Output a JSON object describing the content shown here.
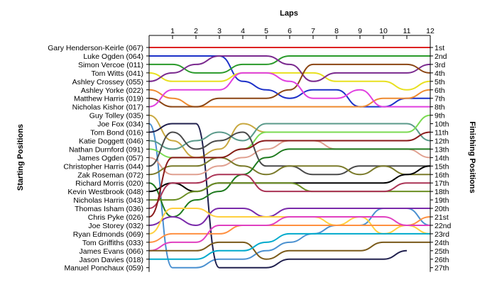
{
  "chart_data": {
    "type": "line",
    "title": "Laps",
    "ylabel_left": "Starting Positions",
    "ylabel_right": "Finishing Positions",
    "laps": [
      0,
      1,
      2,
      3,
      4,
      5,
      6,
      7,
      8,
      9,
      10,
      11,
      12
    ],
    "lap_labels": [
      "1",
      "2",
      "3",
      "4",
      "5",
      "6",
      "7",
      "8",
      "9",
      "10",
      "11",
      "12"
    ],
    "starting_labels": [
      "Gary Henderson-Keirle (067)",
      "Luke Ogden (064)",
      "Simon Vercoe (011)",
      "Tom Witts (041)",
      "Ashley Crossey (055)",
      "Ashley Yorke (022)",
      "Matthew Harris (019)",
      "Nicholas Kishor (017)",
      "Guy Tolley (035)",
      "Joe Fox (034)",
      "Tom Bond (016)",
      "Katie Doggett (046)",
      "Nathan Durnford (091)",
      "James Ogden (057)",
      "Christopher Harris (044)",
      "Zak Roseman (072)",
      "Richard Morris (020)",
      "Kevin Westbrook (048)",
      "Nicholas Harris (043)",
      "Thomas Isham (036)",
      "Chris Pyke (026)",
      "Joe Storey (032)",
      "Ryan Edmonds (069)",
      "Tom Griffiths (033)",
      "James Evans (066)",
      "Jason Davies (018)",
      "Manuel Ponchaux (059)"
    ],
    "finishing_labels": [
      "1st",
      "2nd",
      "3rd",
      "4th",
      "5th",
      "6th",
      "7th",
      "8th",
      "9th",
      "10th",
      "11th",
      "12th",
      "13th",
      "14th",
      "15th",
      "16th",
      "17th",
      "18th",
      "19th",
      "20th",
      "21st",
      "22nd",
      "23rd",
      "24th",
      "25th",
      "26th",
      "27th"
    ],
    "y_range": [
      1,
      27
    ],
    "grid": false,
    "series": [
      {
        "color": "#dd2222",
        "positions": [
          1,
          1,
          1,
          1,
          1,
          1,
          1,
          1,
          1,
          1,
          1,
          1,
          1
        ]
      },
      {
        "color": "#1c30c8",
        "positions": [
          2,
          2,
          2,
          2,
          5,
          6,
          7,
          6,
          6,
          8,
          8,
          7,
          7
        ]
      },
      {
        "color": "#2a9a2a",
        "positions": [
          3,
          3,
          4,
          4,
          3,
          3,
          2,
          2,
          2,
          2,
          2,
          2,
          2
        ]
      },
      {
        "color": "#e8e020",
        "positions": [
          4,
          5,
          5,
          5,
          4,
          4,
          4,
          4,
          5,
          5,
          5,
          6,
          5
        ]
      },
      {
        "color": "#7a2a8e",
        "positions": [
          5,
          4,
          3,
          2,
          2,
          2,
          3,
          5,
          4,
          4,
          4,
          4,
          3
        ]
      },
      {
        "color": "#ee8a30",
        "positions": [
          6,
          7,
          8,
          8,
          8,
          8,
          8,
          8,
          8,
          8,
          7,
          7,
          6
        ]
      },
      {
        "color": "#8b4513",
        "positions": [
          7,
          8,
          8,
          7,
          7,
          7,
          6,
          3,
          3,
          3,
          3,
          3,
          4
        ]
      },
      {
        "color": "#e040e0",
        "positions": [
          8,
          6,
          6,
          6,
          4,
          4,
          5,
          7,
          7,
          6,
          8,
          8,
          8
        ]
      },
      {
        "color": "#c8a840",
        "positions": [
          9,
          12,
          14,
          13,
          10,
          11,
          null,
          null,
          null,
          null,
          null,
          null,
          null
        ]
      },
      {
        "color": "#4a90d0",
        "positions": [
          10,
          27,
          27,
          26,
          26,
          25,
          24,
          23,
          22,
          22,
          20,
          20,
          22
        ]
      },
      {
        "color": "#20204e",
        "positions": [
          11,
          10,
          10,
          27,
          27,
          27,
          26,
          26,
          26,
          26,
          26,
          25,
          null
        ]
      },
      {
        "color": "#5a9a8a",
        "positions": [
          12,
          13,
          12,
          11,
          12,
          10,
          10,
          10,
          10,
          10,
          10,
          10,
          12
        ]
      },
      {
        "color": "#7ada50",
        "positions": [
          13,
          14,
          14,
          14,
          13,
          11,
          11,
          11,
          11,
          11,
          11,
          11,
          9
        ]
      },
      {
        "color": "#e0a090",
        "positions": [
          14,
          16,
          16,
          15,
          14,
          13,
          12,
          12,
          13,
          13,
          13,
          13,
          14
        ]
      },
      {
        "color": "#4a4a4a",
        "positions": [
          15,
          11,
          13,
          12,
          11,
          15,
          15,
          16,
          16,
          15,
          15,
          15,
          15
        ]
      },
      {
        "color": "#7a7a2a",
        "positions": [
          16,
          15,
          15,
          14,
          15,
          16,
          15,
          15,
          15,
          16,
          15,
          16,
          16
        ]
      },
      {
        "color": "#1e7a1e",
        "positions": [
          17,
          21,
          19,
          18,
          16,
          14,
          13,
          13,
          13,
          13,
          13,
          13,
          13
        ]
      },
      {
        "color": "#000000",
        "positions": [
          18,
          17,
          18,
          17,
          17,
          17,
          17,
          17,
          17,
          17,
          17,
          16,
          15
        ]
      },
      {
        "color": "#6b8e23",
        "positions": [
          19,
          19,
          18,
          17,
          17,
          17,
          17,
          18,
          18,
          18,
          18,
          18,
          18
        ]
      },
      {
        "color": "#aa3355",
        "positions": [
          20,
          17,
          17,
          16,
          16,
          18,
          18,
          18,
          18,
          18,
          18,
          17,
          17
        ]
      },
      {
        "color": "#8a1a1a",
        "positions": [
          21,
          14,
          14,
          14,
          13,
          12,
          12,
          12,
          12,
          12,
          12,
          12,
          11
        ]
      },
      {
        "color": "#7a2aaa",
        "positions": [
          22,
          21,
          22,
          20,
          20,
          21,
          20,
          20,
          20,
          20,
          20,
          20,
          20
        ]
      },
      {
        "color": "#ffd040",
        "positions": [
          23,
          20,
          20,
          21,
          21,
          21,
          21,
          21,
          22,
          21,
          23,
          22,
          23
        ]
      },
      {
        "color": "#ff9040",
        "positions": [
          24,
          23,
          23,
          23,
          22,
          22,
          22,
          22,
          22,
          22,
          22,
          22,
          21
        ]
      },
      {
        "color": "#e040c0",
        "positions": [
          25,
          24,
          24,
          22,
          22,
          22,
          21,
          21,
          21,
          21,
          21,
          22,
          22
        ]
      },
      {
        "color": "#7a5a1a",
        "positions": [
          25,
          25,
          25,
          24,
          24,
          26,
          25,
          25,
          25,
          25,
          24,
          24,
          24
        ]
      },
      {
        "color": "#00aacc",
        "positions": [
          26,
          26,
          26,
          25,
          25,
          24,
          23,
          23,
          23,
          23,
          23,
          23,
          23
        ]
      }
    ]
  }
}
